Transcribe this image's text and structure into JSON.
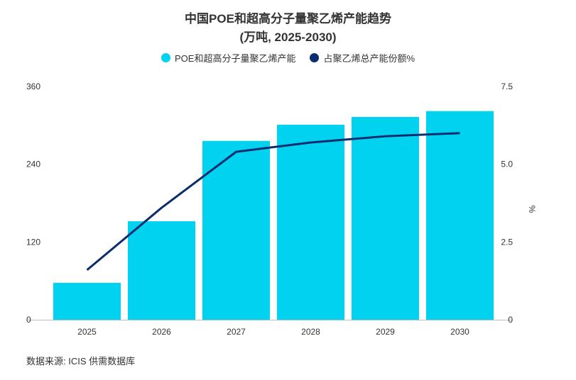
{
  "chart_data": {
    "type": "bar",
    "title": "中国POE和超高分子量聚乙烯产能趋势",
    "subtitle": "(万吨, 2025-2030)",
    "categories": [
      "2025",
      "2026",
      "2027",
      "2028",
      "2029",
      "2030"
    ],
    "series": [
      {
        "name": "POE和超高分子量聚乙烯产能",
        "type": "bar",
        "axis": "left",
        "color": "#00d2f0",
        "values": [
          57,
          152,
          276,
          301,
          313,
          322
        ]
      },
      {
        "name": "占聚乙烯总产能份额%",
        "type": "line",
        "axis": "right",
        "color": "#0a2d6e",
        "values": [
          1.6,
          3.6,
          5.4,
          5.7,
          5.9,
          6.0
        ]
      }
    ],
    "y_left": {
      "min": 0,
      "max": 360,
      "ticks": [
        "0",
        "120",
        "240",
        "360"
      ]
    },
    "y_right": {
      "min": 0,
      "max": 7.5,
      "label": "%",
      "ticks": [
        "0",
        "2.5",
        "5.0",
        "7.5"
      ]
    },
    "grid": false,
    "legend_position": "top"
  },
  "source_note": "数据来源: ICIS 供需数据库"
}
